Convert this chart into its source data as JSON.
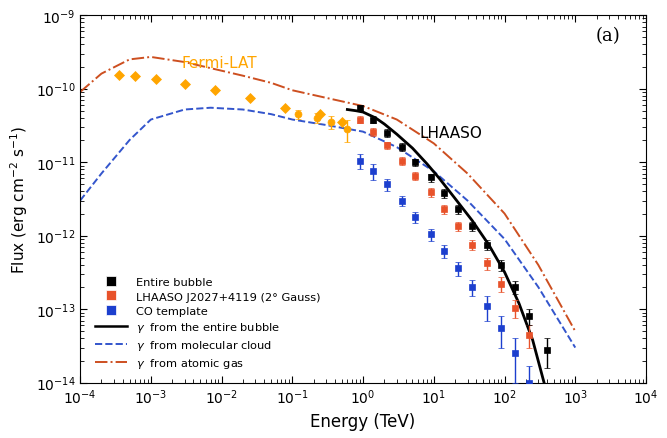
{
  "title": "(a)",
  "xlabel": "Energy (TeV)",
  "ylabel": "Flux (erg cm$^{-2}$ s$^{-1}$)",
  "xlim_log": [
    -4,
    4
  ],
  "ylim_log": [
    -14,
    -9
  ],
  "background_color": "#ffffff",
  "fermi_lat_diamonds": {
    "energy": [
      0.00035,
      0.0006,
      0.0012,
      0.003,
      0.008,
      0.025,
      0.08,
      0.25,
      0.5
    ],
    "flux": [
      1.55e-10,
      1.5e-10,
      1.35e-10,
      1.15e-10,
      9.5e-11,
      7.5e-11,
      5.5e-11,
      4.5e-11,
      3.5e-11
    ],
    "color": "#FFA500",
    "marker": "D",
    "markersize": 5
  },
  "fermi_lat_circles": {
    "energy": [
      0.12,
      0.22,
      0.35,
      0.6
    ],
    "flux": [
      4.5e-11,
      4e-11,
      3.5e-11,
      2.8e-11
    ],
    "flux_err_lo": [
      6e-12,
      6e-12,
      7e-12,
      9e-12
    ],
    "flux_err_hi": [
      6e-12,
      6e-12,
      7e-12,
      9e-12
    ],
    "color": "#FFA500",
    "marker": "o",
    "markersize": 5
  },
  "lhaaso_black": {
    "energy": [
      0.9,
      1.4,
      2.2,
      3.5,
      5.5,
      9.0,
      14.0,
      22.0,
      35.0,
      56.0,
      90.0,
      140.0,
      220.0,
      400.0
    ],
    "flux": [
      5.5e-11,
      3.8e-11,
      2.5e-11,
      1.6e-11,
      1e-11,
      6.2e-12,
      3.8e-12,
      2.3e-12,
      1.35e-12,
      7.5e-13,
      4e-13,
      2e-13,
      8e-14,
      2.8e-14
    ],
    "flux_err_lo": [
      5e-12,
      4e-12,
      3e-12,
      2e-12,
      1.2e-12,
      8e-13,
      5e-13,
      3e-13,
      2e-13,
      1.2e-13,
      7e-14,
      4e-14,
      2e-14,
      1.2e-14
    ],
    "flux_err_hi": [
      5e-12,
      4e-12,
      3e-12,
      2e-12,
      1.2e-12,
      8e-13,
      5e-13,
      3e-13,
      2e-13,
      1.2e-13,
      7e-14,
      4e-14,
      2e-14,
      1.2e-14
    ],
    "color": "#000000",
    "marker": "s",
    "markersize": 5
  },
  "lhaaso_red": {
    "energy": [
      0.9,
      1.4,
      2.2,
      3.5,
      5.5,
      9.0,
      14.0,
      22.0,
      35.0,
      56.0,
      90.0,
      140.0,
      220.0
    ],
    "flux": [
      3.8e-11,
      2.6e-11,
      1.7e-11,
      1.05e-11,
      6.5e-12,
      3.9e-12,
      2.3e-12,
      1.35e-12,
      7.5e-13,
      4.2e-13,
      2.2e-13,
      1.05e-13,
      4.5e-14
    ],
    "flux_err_lo": [
      4e-12,
      3e-12,
      2e-12,
      1.3e-12,
      8e-13,
      5e-13,
      3e-13,
      2e-13,
      1.2e-13,
      8e-14,
      5e-14,
      3e-14,
      1.5e-14
    ],
    "flux_err_hi": [
      4e-12,
      3e-12,
      2e-12,
      1.3e-12,
      8e-13,
      5e-13,
      3e-13,
      2e-13,
      1.2e-13,
      8e-14,
      5e-14,
      3e-14,
      1.5e-14
    ],
    "color": "#E8522A",
    "marker": "s",
    "markersize": 5
  },
  "lhaaso_blue": {
    "energy": [
      0.9,
      1.4,
      2.2,
      3.5,
      5.5,
      9.0,
      14.0,
      22.0,
      35.0,
      56.0,
      90.0,
      140.0,
      220.0
    ],
    "flux": [
      1.05e-11,
      7.5e-12,
      5e-12,
      3e-12,
      1.8e-12,
      1.05e-12,
      6.2e-13,
      3.6e-13,
      2e-13,
      1.1e-13,
      5.5e-14,
      2.5e-14,
      1e-14
    ],
    "flux_err_lo": [
      2.5e-12,
      1.8e-12,
      9e-13,
      5e-13,
      3e-13,
      2e-13,
      1.2e-13,
      8e-14,
      5e-14,
      4e-14,
      2.5e-14,
      1.5e-14,
      7e-15
    ],
    "flux_err_hi": [
      2.5e-12,
      1.8e-12,
      9e-13,
      5e-13,
      3e-13,
      2e-13,
      1.2e-13,
      8e-14,
      5e-14,
      4e-14,
      2.5e-14,
      1.5e-14,
      7e-15
    ],
    "color": "#1C3FCE",
    "marker": "s",
    "markersize": 5
  },
  "model_solid_x": [
    0.6,
    0.8,
    1.0,
    1.5,
    2.0,
    3.0,
    5.0,
    8.0,
    12.0,
    20.0,
    35.0,
    60.0,
    100.0,
    160.0,
    250.0,
    400.0,
    600.0,
    1000.0
  ],
  "model_solid_y": [
    5.2e-11,
    5e-11,
    4.8e-11,
    4e-11,
    3.3e-11,
    2.4e-11,
    1.55e-11,
    9.5e-12,
    6e-12,
    3.2e-12,
    1.6e-12,
    7.5e-13,
    3.2e-13,
    1.2e-13,
    3.8e-14,
    7e-15,
    1.5e-15,
    1e-16
  ],
  "model_dashed_x": [
    0.0001,
    0.0002,
    0.0005,
    0.001,
    0.003,
    0.007,
    0.02,
    0.05,
    0.1,
    0.3,
    1.0,
    3.0,
    10.0,
    30.0,
    100.0,
    300.0,
    1000.0
  ],
  "model_dashed_y": [
    3e-12,
    7e-12,
    2e-11,
    3.8e-11,
    5.2e-11,
    5.5e-11,
    5.2e-11,
    4.5e-11,
    3.8e-11,
    3.2e-11,
    2.6e-11,
    1.6e-11,
    7.5e-12,
    3e-12,
    9e-13,
    2e-13,
    3e-14
  ],
  "model_dashdot_x": [
    0.0001,
    0.0002,
    0.0005,
    0.001,
    0.003,
    0.007,
    0.02,
    0.05,
    0.1,
    0.3,
    1.0,
    3.0,
    10.0,
    30.0,
    100.0,
    300.0,
    1000.0
  ],
  "model_dashdot_y": [
    9e-11,
    1.6e-10,
    2.5e-10,
    2.7e-10,
    2.3e-10,
    1.9e-10,
    1.5e-10,
    1.2e-10,
    9.5e-11,
    7.5e-11,
    5.8e-11,
    3.8e-11,
    1.8e-11,
    7e-12,
    2e-12,
    4e-13,
    5e-14
  ]
}
